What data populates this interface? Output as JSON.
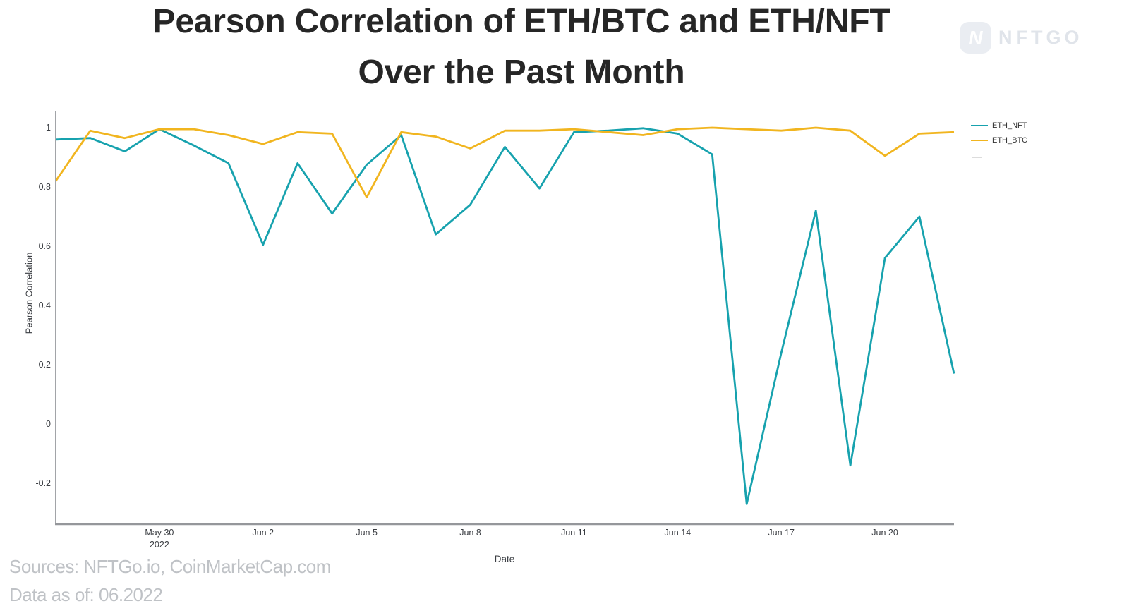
{
  "title": {
    "line1": "Pearson Correlation of ETH/BTC and ETH/NFT",
    "line2": "Over the Past Month"
  },
  "logo": {
    "text": "NFTGO"
  },
  "footer": {
    "sources": "Sources: NFTGo.io, CoinMarketCap.com",
    "data_as_of": "Data as of: 06.2022"
  },
  "chart_data": {
    "type": "line",
    "title": "Pearson Correlation of ETH/BTC and ETH/NFT Over the Past Month",
    "xlabel": "Date",
    "ylabel": "Pearson Correlation",
    "x": [
      "May 27",
      "May 28",
      "May 29",
      "May 30",
      "May 31",
      "Jun 1",
      "Jun 2",
      "Jun 3",
      "Jun 4",
      "Jun 5",
      "Jun 6",
      "Jun 7",
      "Jun 8",
      "Jun 9",
      "Jun 10",
      "Jun 11",
      "Jun 12",
      "Jun 13",
      "Jun 14",
      "Jun 15",
      "Jun 16",
      "Jun 17",
      "Jun 18",
      "Jun 19",
      "Jun 20",
      "Jun 21",
      "Jun 22"
    ],
    "series": [
      {
        "name": "ETH_NFT",
        "color": "#17a2ae",
        "values": [
          0.96,
          0.965,
          0.92,
          0.995,
          0.94,
          0.88,
          0.605,
          0.88,
          0.71,
          0.875,
          0.975,
          0.64,
          0.74,
          0.935,
          0.795,
          0.985,
          0.99,
          0.998,
          0.98,
          0.91,
          -0.27,
          0.24,
          0.72,
          -0.14,
          0.56,
          0.7,
          0.17
        ]
      },
      {
        "name": "ETH_BTC",
        "color": "#f1b51f",
        "values": [
          0.82,
          0.99,
          0.965,
          0.995,
          0.995,
          0.975,
          0.945,
          0.985,
          0.98,
          0.765,
          0.985,
          0.97,
          0.93,
          0.99,
          0.99,
          0.995,
          0.985,
          0.975,
          0.995,
          1.0,
          0.995,
          0.99,
          1.0,
          0.99,
          0.905,
          0.98,
          0.985
        ]
      }
    ],
    "x_ticks": [
      {
        "index": 3,
        "label": "May 30",
        "sublabel": "2022"
      },
      {
        "index": 6,
        "label": "Jun 2"
      },
      {
        "index": 9,
        "label": "Jun 5"
      },
      {
        "index": 12,
        "label": "Jun 8"
      },
      {
        "index": 15,
        "label": "Jun 11"
      },
      {
        "index": 18,
        "label": "Jun 14"
      },
      {
        "index": 21,
        "label": "Jun 17"
      },
      {
        "index": 24,
        "label": "Jun 20"
      }
    ],
    "y_ticks": [
      {
        "value": 1,
        "label": "1"
      },
      {
        "value": 0.8,
        "label": "0.8"
      },
      {
        "value": 0.6,
        "label": "0.6"
      },
      {
        "value": 0.4,
        "label": "0.4"
      },
      {
        "value": 0.2,
        "label": "0.2"
      },
      {
        "value": 0,
        "label": "0"
      },
      {
        "value": -0.2,
        "label": "-0.2"
      }
    ],
    "ylim": [
      -0.34,
      1.05
    ],
    "grid": false,
    "legend_position": "right"
  }
}
